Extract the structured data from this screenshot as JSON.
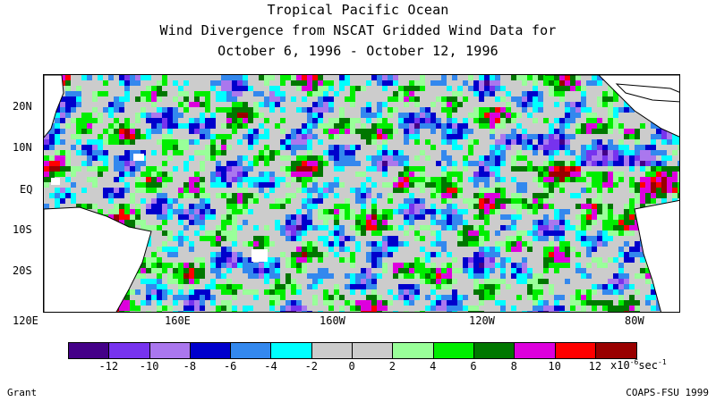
{
  "title": {
    "line1": "Tropical Pacific Ocean",
    "line2": "Wind Divergence from NSCAT Gridded Wind Data for",
    "line3": "October 6, 1996 - October 12, 1996"
  },
  "axes": {
    "lat_labels": [
      "20N",
      "10N",
      "EQ",
      "10S",
      "20S"
    ],
    "lon_labels": [
      "120E",
      "160E",
      "160W",
      "120W",
      "80W"
    ]
  },
  "colorbar": {
    "colors": [
      "#440088",
      "#7733ee",
      "#aa77ee",
      "#0000cc",
      "#3388ee",
      "#00ffff",
      "#cccccc",
      "#cccccc",
      "#99ff99",
      "#00ee00",
      "#007700",
      "#dd00dd",
      "#ff0000",
      "#990000"
    ],
    "labels": [
      "-12",
      "-10",
      "-8",
      "-6",
      "-4",
      "-2",
      "0",
      "2",
      "4",
      "6",
      "8",
      "10",
      "12"
    ],
    "units_prefix": "x10",
    "units_exp": "-6",
    "units_suffix": "sec",
    "units_suffix_exp": "-1"
  },
  "footer": {
    "left": "Grant",
    "right": "COAPS-FSU 1999"
  }
}
